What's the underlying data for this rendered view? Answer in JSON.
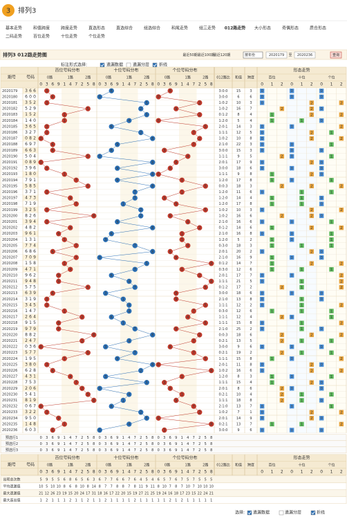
{
  "site": {
    "logo": "3",
    "title": "排列3"
  },
  "nav": [
    "基本走势",
    "和值跨度",
    "跨度走势",
    "直选形态",
    "直选综合",
    "组选综合",
    "和尾走势",
    "组三走势",
    "012路走势",
    "大小形态",
    "奇偶形态",
    "质合形态",
    "二码走势",
    "百位走势",
    "十位走势",
    "个位走势"
  ],
  "nav_active": 8,
  "page_title": "排列3 012路走势图",
  "controls": {
    "recent": [
      "最近50期",
      "最近100期",
      "最近120期"
    ],
    "select": "按年份",
    "range_start": "2020179",
    "range_to": "至",
    "range_end": "2020236",
    "query": "查询"
  },
  "options": {
    "label": "标注形式选择:",
    "items": [
      "遗漏数据",
      "遗漏分层",
      "折线"
    ],
    "checked": [
      true,
      false,
      true
    ]
  },
  "header": {
    "issue": "期号",
    "number": "号码",
    "positions": [
      "百位号码分布",
      "十位号码分布",
      "个位号码分布"
    ],
    "path_labels": [
      "0路",
      "1路",
      "2路"
    ],
    "digit_order": [
      0,
      3,
      6,
      9,
      1,
      4,
      7,
      2,
      5,
      8
    ],
    "ratio": "012路比",
    "sum": "和值",
    "span": "跨度",
    "shape": "形态走势",
    "shape_positions": [
      "百位",
      "十位",
      "个位"
    ],
    "shape_digits": [
      0,
      1,
      2
    ]
  },
  "rows": [
    {
      "issue": "2020179",
      "digits": [
        3,
        6,
        6
      ],
      "ratio": "3:0:0",
      "sum": 15,
      "span": 3
    },
    {
      "issue": "2020180",
      "digits": [
        6,
        0,
        0
      ],
      "ratio": "3:0:0",
      "sum": 6,
      "span": 6
    },
    {
      "issue": "2020181",
      "digits": [
        3,
        5,
        2
      ],
      "ratio": "1:0:2",
      "sum": 10,
      "span": 3
    },
    {
      "issue": "2020182",
      "digits": [
        5,
        2,
        9
      ],
      "ratio": "1:0:2",
      "sum": 16,
      "span": 7
    },
    {
      "issue": "2020183",
      "digits": [
        1,
        5,
        2
      ],
      "ratio": "0:1:2",
      "sum": 8,
      "span": 4
    },
    {
      "issue": "2020184",
      "digits": [
        1,
        4,
        0
      ],
      "ratio": "1:2:0",
      "sum": 5,
      "span": 4
    },
    {
      "issue": "2020185",
      "digits": [
        3,
        6,
        5
      ],
      "ratio": "2:0:1",
      "sum": 14,
      "span": 3
    },
    {
      "issue": "2020186",
      "digits": [
        3,
        2,
        7
      ],
      "ratio": "1:1:1",
      "sum": 12,
      "span": 5
    },
    {
      "issue": "2020187",
      "digits": [
        0,
        8,
        2
      ],
      "ratio": "1:0:2",
      "sum": 10,
      "span": 8
    },
    {
      "issue": "2020188",
      "digits": [
        6,
        9,
        7
      ],
      "ratio": "2:1:0",
      "sum": 22,
      "span": 3
    },
    {
      "issue": "2020189",
      "digits": [
        6,
        6,
        3
      ],
      "ratio": "3:0:0",
      "sum": 15,
      "span": 3
    },
    {
      "issue": "2020190",
      "digits": [
        5,
        0,
        4
      ],
      "ratio": "1:1:1",
      "sum": 9,
      "span": 5
    },
    {
      "issue": "2020191",
      "digits": [
        0,
        8,
        9
      ],
      "ratio": "2:0:1",
      "sum": 17,
      "span": 9
    },
    {
      "issue": "2020192",
      "digits": [
        3,
        9,
        6
      ],
      "ratio": "3:0:0",
      "sum": 18,
      "span": 6
    },
    {
      "issue": "2020193",
      "digits": [
        1,
        8,
        0
      ],
      "ratio": "1:1:1",
      "sum": 9,
      "span": 8
    },
    {
      "issue": "2020194",
      "digits": [
        7,
        9,
        1
      ],
      "ratio": "1:2:0",
      "sum": 17,
      "span": 8
    },
    {
      "issue": "2020195",
      "digits": [
        5,
        8,
        5
      ],
      "ratio": "0:0:3",
      "sum": 18,
      "span": 3
    },
    {
      "issue": "2020196",
      "digits": [
        3,
        7,
        1
      ],
      "ratio": "1:2:0",
      "sum": 11,
      "span": 6
    },
    {
      "issue": "2020197",
      "digits": [
        4,
        7,
        3
      ],
      "ratio": "1:2:0",
      "sum": 14,
      "span": 4
    },
    {
      "issue": "2020198",
      "digits": [
        7,
        1,
        9
      ],
      "ratio": "1:2:0",
      "sum": 17,
      "span": 8
    },
    {
      "issue": "2020199",
      "digits": [
        3,
        2,
        5
      ],
      "ratio": "1:0:2",
      "sum": 10,
      "span": 3
    },
    {
      "issue": "2020200",
      "digits": [
        8,
        2,
        6
      ],
      "ratio": "1:0:2",
      "sum": 16,
      "span": 6
    },
    {
      "issue": "2020201",
      "digits": [
        3,
        9,
        4
      ],
      "ratio": "2:1:0",
      "sum": 16,
      "span": 6
    },
    {
      "issue": "2020202",
      "digits": [
        4,
        8,
        2
      ],
      "ratio": "0:1:2",
      "sum": 14,
      "span": 6
    },
    {
      "issue": "2020203",
      "digits": [
        9,
        6,
        1
      ],
      "ratio": "2:1:0",
      "sum": 16,
      "span": 8
    },
    {
      "issue": "2020204",
      "digits": [
        1,
        3,
        1
      ],
      "ratio": "1:2:0",
      "sum": 5,
      "span": 2
    },
    {
      "issue": "2020205",
      "digits": [
        7,
        7,
        4
      ],
      "ratio": "0:3:0",
      "sum": 18,
      "span": 3
    },
    {
      "issue": "2020206",
      "digits": [
        6,
        8,
        6
      ],
      "ratio": "2:0:1",
      "sum": 20,
      "span": 2
    },
    {
      "issue": "2020207",
      "digits": [
        7,
        0,
        9
      ],
      "ratio": "2:1:0",
      "sum": 16,
      "span": 9
    },
    {
      "issue": "2020208",
      "digits": [
        1,
        5,
        8
      ],
      "ratio": "0:1:2",
      "sum": 14,
      "span": 7
    },
    {
      "issue": "2020209",
      "digits": [
        4,
        7,
        1
      ],
      "ratio": "0:3:0",
      "sum": 12,
      "span": 6
    },
    {
      "issue": "2020210",
      "digits": [
        9,
        6,
        2
      ],
      "ratio": "2:0:1",
      "sum": 17,
      "span": 7
    },
    {
      "issue": "2020211",
      "digits": [
        9,
        4,
        8
      ],
      "ratio": "1:1:1",
      "sum": 21,
      "span": 5
    },
    {
      "issue": "2020212",
      "digits": [
        5,
        7,
        5
      ],
      "ratio": "0:1:2",
      "sum": 17,
      "span": 2
    },
    {
      "issue": "2020213",
      "digits": [
        6,
        3,
        9
      ],
      "ratio": "3:0:0",
      "sum": 18,
      "span": 6
    },
    {
      "issue": "2020214",
      "digits": [
        3,
        1,
        9
      ],
      "ratio": "2:1:0",
      "sum": 13,
      "span": 8
    },
    {
      "issue": "2020215",
      "digits": [
        3,
        4,
        5
      ],
      "ratio": "1:1:1",
      "sum": 12,
      "span": 2
    },
    {
      "issue": "2020216",
      "digits": [
        1,
        4,
        7
      ],
      "ratio": "0:3:0",
      "sum": 12,
      "span": 6
    },
    {
      "issue": "2020217",
      "digits": [
        2,
        6,
        4
      ],
      "ratio": "1:1:1",
      "sum": 12,
      "span": 4
    },
    {
      "issue": "2020218",
      "digits": [
        9,
        1,
        5
      ],
      "ratio": "1:1:1",
      "sum": 15,
      "span": 8
    },
    {
      "issue": "2020219",
      "digits": [
        9,
        7,
        9
      ],
      "ratio": "2:1:0",
      "sum": 25,
      "span": 2
    },
    {
      "issue": "2020220",
      "digits": [
        8,
        8,
        2
      ],
      "ratio": "0:0:3",
      "sum": 18,
      "span": 6
    },
    {
      "issue": "2020221",
      "digits": [
        2,
        4,
        7
      ],
      "ratio": "0:2:1",
      "sum": 13,
      "span": 5
    },
    {
      "issue": "2020222",
      "digits": [
        0,
        3,
        6
      ],
      "ratio": "3:0:0",
      "sum": 9,
      "span": 6
    },
    {
      "issue": "2020223",
      "digits": [
        5,
        7,
        7
      ],
      "ratio": "0:2:1",
      "sum": 19,
      "span": 2
    },
    {
      "issue": "2020224",
      "digits": [
        1,
        9,
        5
      ],
      "ratio": "1:1:1",
      "sum": 15,
      "span": 8
    },
    {
      "issue": "2020225",
      "digits": [
        3,
        8,
        0
      ],
      "ratio": "2:0:1",
      "sum": 11,
      "span": 8
    },
    {
      "issue": "2020226",
      "digits": [
        6,
        2,
        8
      ],
      "ratio": "1:0:2",
      "sum": 16,
      "span": 6
    },
    {
      "issue": "2020227",
      "digits": [
        4,
        3,
        1
      ],
      "ratio": "1:2:0",
      "sum": 8,
      "span": 3
    },
    {
      "issue": "2020228",
      "digits": [
        7,
        5,
        3
      ],
      "ratio": "1:1:1",
      "sum": 15,
      "span": 4
    },
    {
      "issue": "2020229",
      "digits": [
        2,
        0,
        6
      ],
      "ratio": "2:0:1",
      "sum": 8,
      "span": 6
    },
    {
      "issue": "2020230",
      "digits": [
        5,
        4,
        1
      ],
      "ratio": "0:2:1",
      "sum": 10,
      "span": 4
    },
    {
      "issue": "2020231",
      "digits": [
        8,
        1,
        9
      ],
      "ratio": "1:1:1",
      "sum": 18,
      "span": 8
    },
    {
      "issue": "2020232",
      "digits": [
        0,
        6,
        7
      ],
      "ratio": "2:1:0",
      "sum": 13,
      "span": 7
    },
    {
      "issue": "2020233",
      "digits": [
        3,
        2,
        2
      ],
      "ratio": "1:0:2",
      "sum": 7,
      "span": 1
    },
    {
      "issue": "2020234",
      "digits": [
        9,
        5,
        0
      ],
      "ratio": "2:0:1",
      "sum": 14,
      "span": 9
    },
    {
      "issue": "2020235",
      "digits": [
        1,
        4,
        8
      ],
      "ratio": "0:2:1",
      "sum": 13,
      "span": 7
    },
    {
      "issue": "2020236",
      "digits": [
        6,
        0,
        3
      ],
      "ratio": "3:0:0",
      "sum": 9,
      "span": 6
    }
  ],
  "preview_rows": [
    "预选行1",
    "预选行2",
    "预选行3"
  ],
  "stats": [
    {
      "label": "出现总次数",
      "values": [
        [
          5,
          9,
          5,
          5,
          6,
          8,
          6,
          5,
          6,
          3
        ],
        [
          6,
          7,
          7,
          6,
          6,
          7,
          6,
          4,
          5,
          4
        ],
        [
          6,
          5,
          7,
          6,
          7,
          5,
          7,
          5,
          5,
          5
        ]
      ]
    },
    {
      "label": "平均遗漏值",
      "values": [
        [
          10,
          5,
          10,
          10,
          8,
          6,
          8,
          10,
          8,
          14
        ],
        [
          8,
          7,
          7,
          8,
          8,
          7,
          8,
          11,
          9,
          11
        ],
        [
          8,
          10,
          7,
          8,
          7,
          10,
          7,
          10,
          10,
          10
        ]
      ]
    },
    {
      "label": "最大遗漏值",
      "values": [
        [
          21,
          12,
          26,
          23,
          19,
          15,
          20,
          24,
          17,
          31
        ],
        [
          18,
          16,
          17,
          22,
          20,
          15,
          19,
          27,
          21,
          25
        ],
        [
          19,
          24,
          16,
          18,
          17,
          23,
          15,
          22,
          24,
          21
        ]
      ]
    },
    {
      "label": "最大连出值",
      "values": [
        [
          1,
          2,
          1,
          1,
          1,
          2,
          1,
          1,
          2,
          1
        ],
        [
          1,
          2,
          1,
          1,
          1,
          1,
          2,
          1,
          1,
          1
        ],
        [
          1,
          1,
          2,
          1,
          2,
          1,
          1,
          1,
          1,
          1
        ]
      ]
    }
  ],
  "footer_options": {
    "label": "选择:",
    "items": [
      "遗漏数据",
      "遗漏分层",
      "折线"
    ],
    "checked": [
      true,
      false,
      true
    ]
  }
}
